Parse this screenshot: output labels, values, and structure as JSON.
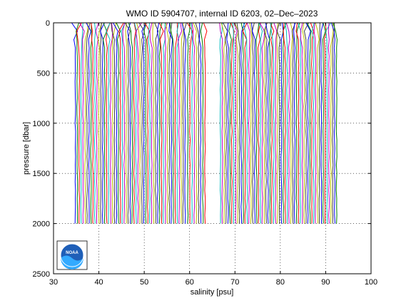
{
  "chart_data": {
    "type": "line",
    "title": "WMO ID 5904707, internal ID 6203, 02–Dec–2023",
    "xlabel": "salinity [psu]",
    "ylabel": "pressure [dbar]",
    "xlim": [
      30,
      100
    ],
    "ylim": [
      0,
      2500
    ],
    "y_reversed": true,
    "grid": true,
    "grid_style": "dotted",
    "x_ticks": [
      30,
      40,
      50,
      60,
      70,
      80,
      90,
      100
    ],
    "y_ticks": [
      0,
      500,
      1000,
      1500,
      2000,
      2500
    ],
    "profile_pressure_range": [
      0,
      2000
    ],
    "profile_groups": [
      {
        "x_start": 34.8,
        "x_end": 59.0,
        "count": 57
      },
      {
        "x_start": 59.6,
        "x_end": 63.4,
        "count": 9
      },
      {
        "x_start": 66.8,
        "x_end": 92.4,
        "count": 62
      }
    ],
    "series_colors": [
      "#0000ff",
      "#008000",
      "#ff0000",
      "#00bfbf",
      "#bf00bf",
      "#bfbf00",
      "#404040"
    ],
    "logo": "noaa-logo"
  }
}
